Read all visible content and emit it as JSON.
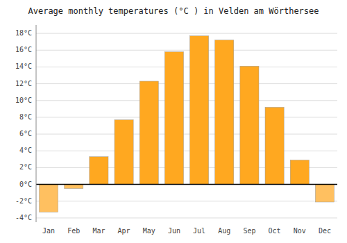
{
  "chart_data": {
    "type": "bar",
    "title": "Average monthly temperatures (°C ) in Velden am Wörthersee",
    "categories": [
      "Jan",
      "Feb",
      "Mar",
      "Apr",
      "May",
      "Jun",
      "Jul",
      "Aug",
      "Sep",
      "Oct",
      "Nov",
      "Dec"
    ],
    "values": [
      -3.3,
      -0.5,
      3.3,
      7.7,
      12.3,
      15.8,
      17.7,
      17.2,
      14.1,
      9.2,
      2.9,
      -2.1
    ],
    "colors": [
      "#FFC060",
      "#FFC060",
      "#FFA820",
      "#FFA820",
      "#FFA820",
      "#FFA820",
      "#FFA820",
      "#FFA820",
      "#FFA820",
      "#FFA820",
      "#FFA820",
      "#FFC060"
    ],
    "ylim": [
      -4.5,
      19
    ],
    "yticks": [
      {
        "value": -4,
        "label": "-4°C"
      },
      {
        "value": -2,
        "label": "-2°C"
      },
      {
        "value": 0,
        "label": "0°C"
      },
      {
        "value": 2,
        "label": "2°C"
      },
      {
        "value": 4,
        "label": "4°C"
      },
      {
        "value": 6,
        "label": "6°C"
      },
      {
        "value": 8,
        "label": "8°C"
      },
      {
        "value": 10,
        "label": "10°C"
      },
      {
        "value": 12,
        "label": "12°C"
      },
      {
        "value": 14,
        "label": "14°C"
      },
      {
        "value": 16,
        "label": "16°C"
      },
      {
        "value": 18,
        "label": "18°C"
      }
    ],
    "grid": true
  }
}
